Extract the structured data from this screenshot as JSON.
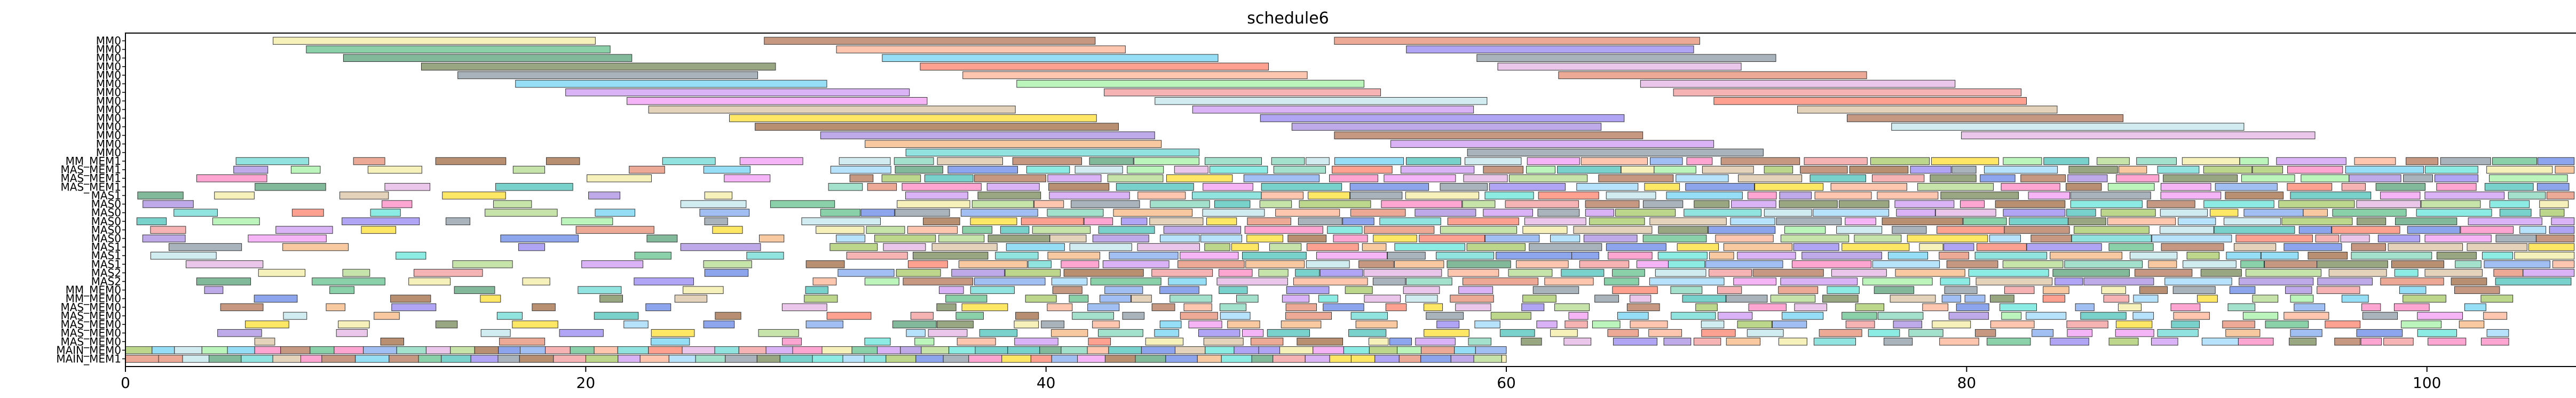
{
  "chart_data": {
    "type": "gantt",
    "title": "schedule6",
    "xlabel": "",
    "ylabel": "",
    "xlim": [
      0,
      106.5
    ],
    "xticks": [
      0,
      20,
      40,
      60,
      80,
      100
    ],
    "rows": [
      "MM0",
      "MM0",
      "MM0",
      "MM0",
      "MM0",
      "MM0",
      "MM0",
      "MM0",
      "MM0",
      "MM0",
      "MM0",
      "MM0",
      "MM0",
      "MM0",
      "MM_MEM1",
      "MAS_MEM1",
      "MAS_MEM1",
      "MAS_MEM1",
      "MAS1",
      "MAS0",
      "MAS0",
      "MAS0",
      "MAS0",
      "MAS0",
      "MAS1",
      "MAS1",
      "MAS1",
      "MAS2",
      "MAS2",
      "MM_MEM0",
      "MM_MEM0",
      "MAS_MEM0",
      "MAS_MEM0",
      "MAS_MEM0",
      "MAS_MEM0",
      "MAS_MEM0",
      "MAIN_MEM0",
      "MAIN_MEM1"
    ],
    "palette": [
      "#8fbc3f",
      "#a0d070",
      "#f08080",
      "#ff69b4",
      "#50c8f0",
      "#40e0d0",
      "#7b68ee",
      "#6495ed",
      "#9370db",
      "#c080f0",
      "#f4a460",
      "#ffa07a",
      "#e07050",
      "#90ee90",
      "#3cb371",
      "#2e8b57",
      "#ffd700",
      "#f0e68c",
      "#d2b48c",
      "#a0522d",
      "#20b2aa",
      "#48d1cc",
      "#87cefa",
      "#4169e1",
      "#dda0dd",
      "#ee82ee",
      "#ff6347",
      "#66cdaa",
      "#b0e0e6",
      "#708090",
      "#556b2f",
      "#8b4513"
    ]
  }
}
